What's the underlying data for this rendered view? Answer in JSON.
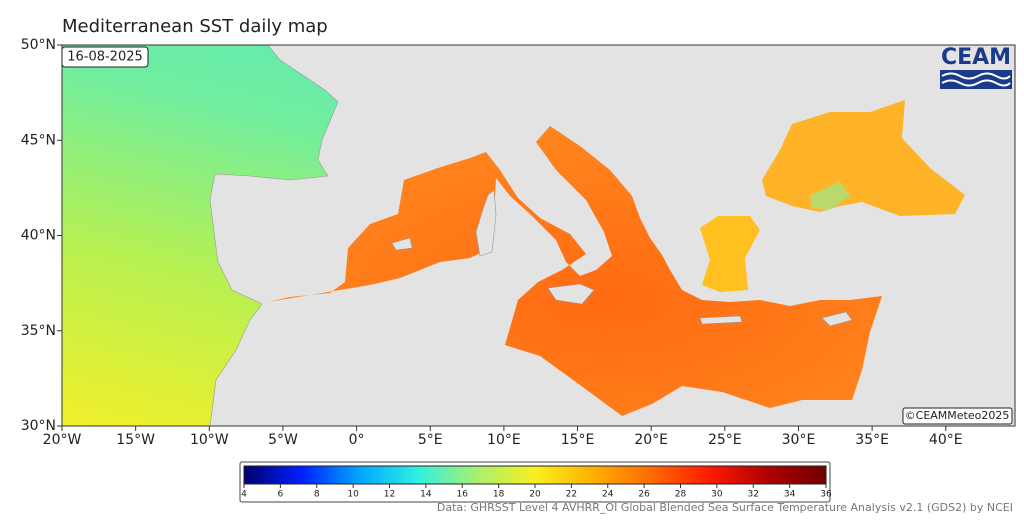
{
  "title": "Mediterranean SST daily map",
  "date": "16-08-2025",
  "logo": "CEAM",
  "copyright": "©CEAMMeteo2025",
  "source": "Data: GHRSST Level 4 AVHRR_OI Global Blended Sea Surface Temperature Analysis v2.1 (GDS2) by NCEI",
  "map": {
    "xlim": [
      -20,
      44.7
    ],
    "ylim": [
      30,
      50
    ],
    "xticks": [
      {
        "value": -20,
        "label": "20°W"
      },
      {
        "value": -15,
        "label": "15°W"
      },
      {
        "value": -10,
        "label": "10°W"
      },
      {
        "value": -5,
        "label": "5°W"
      },
      {
        "value": 0,
        "label": "0°"
      },
      {
        "value": 5,
        "label": "5°E"
      },
      {
        "value": 10,
        "label": "10°E"
      },
      {
        "value": 15,
        "label": "15°E"
      },
      {
        "value": 20,
        "label": "20°E"
      },
      {
        "value": 25,
        "label": "25°E"
      },
      {
        "value": 30,
        "label": "30°E"
      },
      {
        "value": 35,
        "label": "35°E"
      },
      {
        "value": 40,
        "label": "40°E"
      }
    ],
    "yticks": [
      {
        "value": 30,
        "label": "30°N"
      },
      {
        "value": 35,
        "label": "35°N"
      },
      {
        "value": 40,
        "label": "40°N"
      },
      {
        "value": 45,
        "label": "45°N"
      },
      {
        "value": 50,
        "label": "50°N"
      }
    ]
  },
  "colorbar": {
    "lim": [
      4,
      36
    ],
    "ticks": [
      4,
      6,
      8,
      10,
      12,
      14,
      16,
      18,
      20,
      22,
      24,
      26,
      28,
      30,
      32,
      34,
      36
    ],
    "colors": [
      "#00006e",
      "#0020ff",
      "#00a8ff",
      "#30f0e0",
      "#a8f070",
      "#f8f020",
      "#ffb000",
      "#ff6a00",
      "#ff1a00",
      "#b00000",
      "#700000"
    ]
  }
}
